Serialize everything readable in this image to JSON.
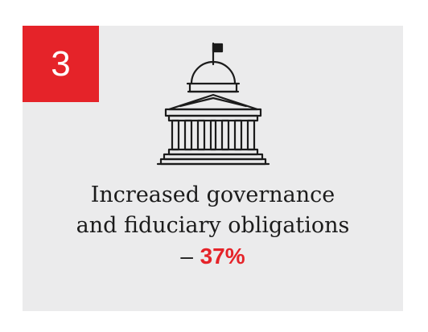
{
  "badge": {
    "number": "3",
    "color": "#e52329"
  },
  "icon": {
    "name": "government-building-icon"
  },
  "caption": {
    "line1": "Increased governance",
    "line2": "and fiduciary obligations",
    "dash": "–",
    "stat": "37%",
    "stat_color": "#e52329"
  },
  "colors": {
    "card_background": "#ebebec",
    "text": "#1b1b1b"
  }
}
